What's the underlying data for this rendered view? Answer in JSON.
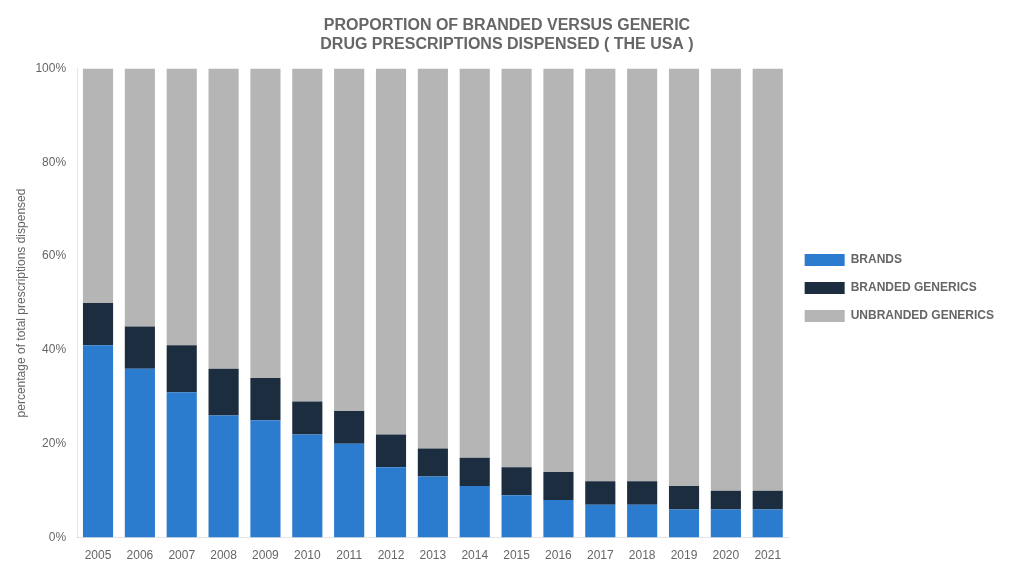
{
  "chart_data": {
    "type": "bar",
    "title": "PROPORTION OF BRANDED VERSUS GENERIC\nDRUG PRESCRIPTIONS DISPENSED ( THE USA )",
    "y_label": "percentage of total prescriptions dispensed",
    "categories": [
      "2005",
      "2006",
      "2007",
      "2008",
      "2009",
      "2010",
      "2011",
      "2012",
      "2013",
      "2014",
      "2015",
      "2016",
      "2017",
      "2018",
      "2019",
      "2020",
      "2021"
    ],
    "series": [
      {
        "name": "BRANDS",
        "color": "#2b7bce",
        "values": [
          41,
          36,
          31,
          26,
          25,
          22,
          20,
          15,
          13,
          11,
          9,
          8,
          7,
          7,
          6,
          6,
          6
        ]
      },
      {
        "name": "BRANDED GENERICS",
        "color": "#1c2d40",
        "values": [
          9,
          9,
          10,
          10,
          9,
          7,
          7,
          7,
          6,
          6,
          6,
          6,
          5,
          5,
          5,
          4,
          4
        ]
      },
      {
        "name": "UNBRANDED GENERICS",
        "color": "#b5b5b5",
        "values": [
          50,
          55,
          59,
          64,
          66,
          71,
          73,
          78,
          81,
          83,
          85,
          86,
          88,
          88,
          89,
          90,
          90
        ]
      }
    ],
    "stacked": true,
    "ylim": [
      0,
      100
    ],
    "yticks": [
      {
        "value": 0,
        "label": "0%"
      },
      {
        "value": 20,
        "label": "20%"
      },
      {
        "value": 40,
        "label": "40%"
      },
      {
        "value": 60,
        "label": "60%"
      },
      {
        "value": 80,
        "label": "80%"
      },
      {
        "value": 100,
        "label": "100%"
      }
    ],
    "grid": false,
    "legend": "right"
  }
}
